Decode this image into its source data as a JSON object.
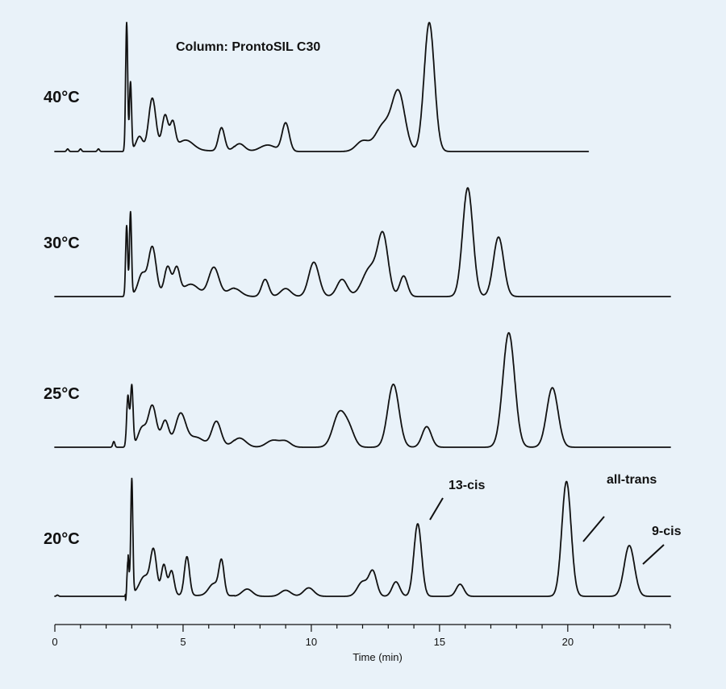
{
  "chart_data": {
    "type": "line",
    "title": "Column:  ProntoSIL C30",
    "xlabel": "Time (min)",
    "ylabel": "",
    "xlim": [
      0,
      24
    ],
    "x_ticks": [
      0,
      5,
      10,
      15,
      20
    ],
    "grid": false,
    "series": [
      {
        "name": "40°C",
        "x_end": 20.8,
        "baseline_noise": [
          [
            0.5,
            0.02
          ],
          [
            1.0,
            0.02
          ],
          [
            1.7,
            0.02
          ]
        ],
        "peaks": [
          [
            2.8,
            1.0,
            0.04
          ],
          [
            2.95,
            0.52,
            0.04
          ],
          [
            3.3,
            0.1,
            0.12
          ],
          [
            3.8,
            0.4,
            0.14
          ],
          [
            4.3,
            0.27,
            0.12
          ],
          [
            4.6,
            0.2,
            0.1
          ],
          [
            5.1,
            0.08,
            0.3
          ],
          [
            6.5,
            0.18,
            0.12
          ],
          [
            7.2,
            0.06,
            0.2
          ],
          [
            8.3,
            0.05,
            0.3
          ],
          [
            9.0,
            0.22,
            0.14
          ],
          [
            12.0,
            0.08,
            0.25
          ],
          [
            12.8,
            0.2,
            0.3
          ],
          [
            13.4,
            0.45,
            0.25
          ],
          [
            14.6,
            1.0,
            0.2
          ]
        ]
      },
      {
        "name": "30°C",
        "x_end": 24,
        "baseline_noise": [],
        "peaks": [
          [
            2.8,
            0.62,
            0.04
          ],
          [
            2.95,
            0.72,
            0.04
          ],
          [
            3.4,
            0.18,
            0.15
          ],
          [
            3.8,
            0.42,
            0.15
          ],
          [
            4.4,
            0.25,
            0.13
          ],
          [
            4.75,
            0.23,
            0.12
          ],
          [
            5.3,
            0.1,
            0.3
          ],
          [
            6.2,
            0.25,
            0.2
          ],
          [
            7.0,
            0.07,
            0.25
          ],
          [
            8.2,
            0.15,
            0.14
          ],
          [
            9.0,
            0.07,
            0.2
          ],
          [
            10.1,
            0.3,
            0.2
          ],
          [
            11.2,
            0.15,
            0.2
          ],
          [
            12.3,
            0.25,
            0.3
          ],
          [
            12.8,
            0.5,
            0.2
          ],
          [
            13.6,
            0.18,
            0.15
          ],
          [
            16.1,
            0.95,
            0.2
          ],
          [
            17.3,
            0.52,
            0.2
          ]
        ]
      },
      {
        "name": "25°C",
        "x_end": 24,
        "baseline_noise": [
          [
            2.3,
            0.05
          ]
        ],
        "peaks": [
          [
            2.85,
            0.45,
            0.05
          ],
          [
            3.0,
            0.52,
            0.05
          ],
          [
            3.4,
            0.15,
            0.15
          ],
          [
            3.8,
            0.35,
            0.16
          ],
          [
            4.3,
            0.22,
            0.14
          ],
          [
            4.9,
            0.28,
            0.2
          ],
          [
            5.5,
            0.08,
            0.3
          ],
          [
            6.3,
            0.22,
            0.18
          ],
          [
            7.2,
            0.08,
            0.25
          ],
          [
            8.5,
            0.06,
            0.25
          ],
          [
            9.0,
            0.05,
            0.2
          ],
          [
            11.1,
            0.3,
            0.25
          ],
          [
            11.5,
            0.12,
            0.2
          ],
          [
            13.2,
            0.55,
            0.22
          ],
          [
            14.5,
            0.18,
            0.18
          ],
          [
            17.7,
            1.0,
            0.23
          ],
          [
            19.4,
            0.52,
            0.22
          ]
        ]
      },
      {
        "name": "20°C",
        "x_end": 24,
        "baseline_noise": [
          [
            0.1,
            0.01
          ]
        ],
        "peaks": [
          [
            2.85,
            0.35,
            0.04
          ],
          [
            3.0,
            0.95,
            0.04
          ],
          [
            3.5,
            0.15,
            0.2
          ],
          [
            3.85,
            0.35,
            0.12
          ],
          [
            4.25,
            0.25,
            0.1
          ],
          [
            4.55,
            0.2,
            0.1
          ],
          [
            5.15,
            0.32,
            0.1
          ],
          [
            6.2,
            0.1,
            0.2
          ],
          [
            6.5,
            0.27,
            0.1
          ],
          [
            7.5,
            0.06,
            0.2
          ],
          [
            9.0,
            0.05,
            0.2
          ],
          [
            9.9,
            0.07,
            0.2
          ],
          [
            12.0,
            0.12,
            0.2
          ],
          [
            12.4,
            0.2,
            0.15
          ],
          [
            13.3,
            0.12,
            0.15
          ],
          [
            14.15,
            0.6,
            0.15
          ],
          [
            15.8,
            0.1,
            0.15
          ],
          [
            19.95,
            0.95,
            0.18
          ],
          [
            22.4,
            0.42,
            0.2
          ]
        ]
      }
    ],
    "annotations": [
      {
        "text": "13-cis",
        "series": "20°C",
        "x": 14.2
      },
      {
        "text": "all-trans",
        "series": "20°C",
        "x": 20.0
      },
      {
        "text": "9-cis",
        "series": "20°C",
        "x": 22.4
      }
    ]
  }
}
